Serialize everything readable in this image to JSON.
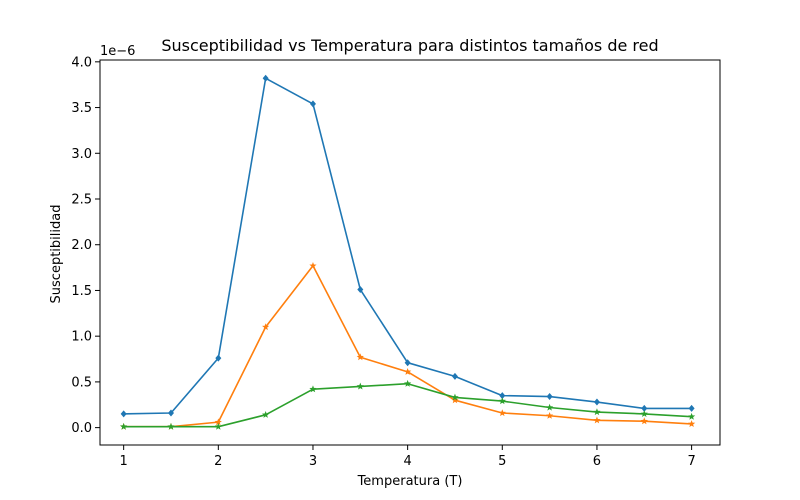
{
  "chart_data": {
    "type": "line",
    "title": "Susceptibilidad vs Temperatura para distintos tamaños de red",
    "xlabel": "Temperatura (T)",
    "ylabel": "Susceptibilidad",
    "y_offset_label": "1e−6",
    "xlim": [
      0.75,
      7.3
    ],
    "ylim": [
      -1.9e-07,
      4.02e-06
    ],
    "x_ticks": [
      1,
      2,
      3,
      4,
      5,
      6,
      7
    ],
    "x_tick_labels": [
      "1",
      "2",
      "3",
      "4",
      "5",
      "6",
      "7"
    ],
    "y_ticks": [
      0,
      5e-07,
      1e-06,
      1.5e-06,
      2e-06,
      2.5e-06,
      3e-06,
      3.5e-06,
      4e-06
    ],
    "y_tick_labels": [
      "0.0",
      "0.5",
      "1.0",
      "1.5",
      "2.0",
      "2.5",
      "3.0",
      "3.5",
      "4.0"
    ],
    "x": [
      1,
      1.5,
      2,
      2.5,
      3,
      3.5,
      4,
      4.5,
      5,
      5.5,
      6,
      6.5,
      7
    ],
    "grid": false,
    "series": [
      {
        "color": "#1f77b4",
        "marker": "diamond",
        "values": [
          1.5e-07,
          1.6e-07,
          7.6e-07,
          3.82e-06,
          3.54e-06,
          1.51e-06,
          7.1e-07,
          5.6e-07,
          3.5e-07,
          3.4e-07,
          2.8e-07,
          2.1e-07,
          2.1e-07
        ]
      },
      {
        "color": "#ff7f0e",
        "marker": "star",
        "values": [
          1e-08,
          1e-08,
          6e-08,
          1.1e-06,
          1.77e-06,
          7.7e-07,
          6.1e-07,
          3e-07,
          1.6e-07,
          1.3e-07,
          8e-08,
          7e-08,
          4e-08
        ]
      },
      {
        "color": "#2ca02c",
        "marker": "star",
        "values": [
          1e-08,
          1e-08,
          1e-08,
          1.4e-07,
          4.2e-07,
          4.5e-07,
          4.8e-07,
          3.3e-07,
          2.9e-07,
          2.2e-07,
          1.7e-07,
          1.5e-07,
          1.2e-07
        ]
      }
    ]
  }
}
